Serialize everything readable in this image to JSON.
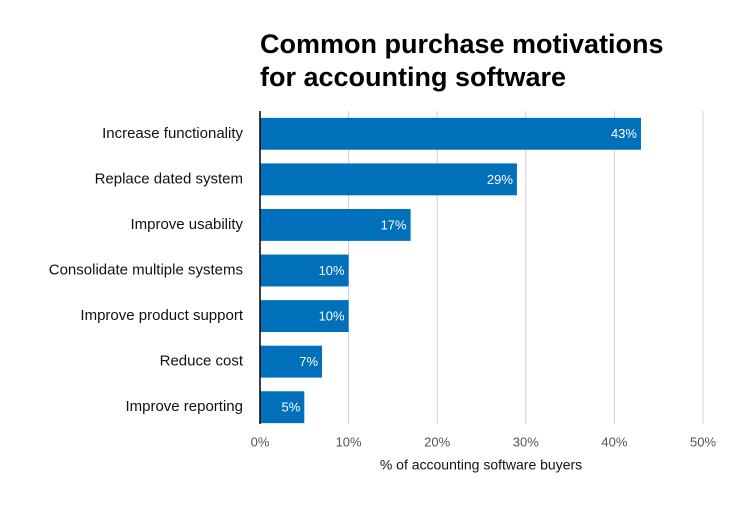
{
  "chart_data": {
    "type": "bar",
    "orientation": "horizontal",
    "title": [
      "Common purchase motivations",
      "for accounting software"
    ],
    "xlabel": "% of accounting software buyers",
    "categories": [
      "Increase functionality",
      "Replace dated system",
      "Improve usability",
      "Consolidate multiple systems",
      "Improve product support",
      "Reduce cost",
      "Improve reporting"
    ],
    "values": [
      43,
      29,
      17,
      10,
      10,
      7,
      5
    ],
    "value_labels": [
      "43%",
      "29%",
      "17%",
      "10%",
      "10%",
      "7%",
      "5%"
    ],
    "color": "#0070bb",
    "xlim": [
      0,
      50
    ],
    "xticks": [
      {
        "value": 0,
        "label": "0%"
      },
      {
        "value": 10,
        "label": "10%"
      },
      {
        "value": 20,
        "label": "20%"
      },
      {
        "value": 30,
        "label": "30%"
      },
      {
        "value": 40,
        "label": "40%"
      },
      {
        "value": 50,
        "label": "50%"
      }
    ],
    "grid": true
  }
}
